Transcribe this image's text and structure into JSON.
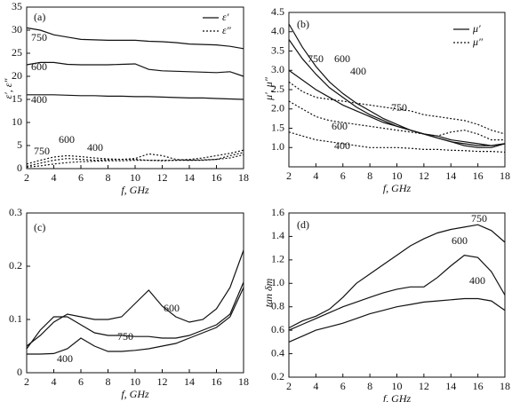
{
  "chart_data": [
    {
      "type": "line",
      "title": "(a)",
      "xlabel": "f, GHz",
      "ylabel": "ε′, ε″",
      "x": [
        2,
        3,
        4,
        5,
        6,
        7,
        8,
        9,
        10,
        11,
        12,
        13,
        14,
        15,
        16,
        17,
        18
      ],
      "xlim": [
        2,
        18
      ],
      "xticks": [
        2,
        4,
        6,
        8,
        10,
        12,
        14,
        16,
        18
      ],
      "ylim": [
        0,
        35
      ],
      "yticks": [
        0,
        5,
        10,
        15,
        20,
        25,
        30,
        35
      ],
      "legend": [
        {
          "label": "ε′",
          "dash": false
        },
        {
          "label": "ε″",
          "dash": true
        }
      ],
      "legend_corner": "upper right",
      "series": [
        {
          "name": "750",
          "color": "#111",
          "dash": false,
          "values": [
            30.5,
            30,
            29,
            28.5,
            28,
            27.9,
            27.8,
            27.8,
            27.8,
            27.6,
            27.5,
            27.3,
            27,
            26.9,
            26.8,
            26.5,
            26
          ]
        },
        {
          "name": "600",
          "color": "#111",
          "dash": false,
          "values": [
            22.5,
            23,
            23,
            22.6,
            22.5,
            22.5,
            22.5,
            22.6,
            22.7,
            21.5,
            21.2,
            21.1,
            21,
            20.9,
            20.8,
            21,
            20
          ]
        },
        {
          "name": "400",
          "color": "#111",
          "dash": false,
          "values": [
            16,
            16,
            16,
            15.9,
            15.8,
            15.8,
            15.7,
            15.7,
            15.6,
            15.6,
            15.5,
            15.4,
            15.3,
            15.3,
            15.2,
            15.1,
            15
          ]
        },
        {
          "name": "750",
          "color": "#111",
          "dash": true,
          "values": [
            1,
            1.8,
            2.5,
            2.8,
            2.6,
            2.3,
            2.1,
            2,
            2,
            1.8,
            1.7,
            1.8,
            2,
            2.3,
            2.8,
            3.3,
            4
          ]
        },
        {
          "name": "600",
          "color": "#111",
          "dash": true,
          "values": [
            0.5,
            1.2,
            1.8,
            2.2,
            2,
            1.8,
            1.9,
            2,
            2.2,
            3.2,
            2.8,
            2,
            1.8,
            1.8,
            2,
            2.8,
            3.5
          ]
        },
        {
          "name": "400",
          "color": "#111",
          "dash": true,
          "values": [
            0.3,
            0.6,
            1,
            1.3,
            1.5,
            1.6,
            1.7,
            1.7,
            1.8,
            1.8,
            1.8,
            1.8,
            1.8,
            1.9,
            2,
            2.3,
            3
          ]
        }
      ]
    },
    {
      "type": "line",
      "title": "(b)",
      "xlabel": "f, GHz",
      "ylabel": "μ′, μ″",
      "x": [
        2,
        3,
        4,
        5,
        6,
        7,
        8,
        9,
        10,
        11,
        12,
        13,
        14,
        15,
        16,
        17,
        18
      ],
      "xlim": [
        2,
        18
      ],
      "xticks": [
        2,
        4,
        6,
        8,
        10,
        12,
        14,
        16,
        18
      ],
      "ylim": [
        0.5,
        4.5
      ],
      "yticks": [
        {
          "value": 1,
          "label": "1.0"
        },
        1.5,
        {
          "value": 2,
          "label": "2.0"
        },
        2.5,
        {
          "value": 3,
          "label": "3.0"
        },
        3.5,
        {
          "value": 4,
          "label": "4.0"
        },
        4.5
      ],
      "legend": [
        {
          "label": "μ′",
          "dash": false
        },
        {
          "label": "μ″",
          "dash": true
        }
      ],
      "legend_corner": "upper right",
      "series": [
        {
          "name": "750",
          "color": "#111",
          "dash": false,
          "values": [
            4.2,
            3.6,
            3.1,
            2.7,
            2.4,
            2.15,
            1.95,
            1.75,
            1.6,
            1.45,
            1.35,
            1.25,
            1.15,
            1.05,
            1,
            1,
            1.1
          ]
        },
        {
          "name": "600",
          "color": "#111",
          "dash": false,
          "values": [
            3.8,
            3.3,
            2.9,
            2.55,
            2.3,
            2.05,
            1.85,
            1.7,
            1.55,
            1.45,
            1.35,
            1.25,
            1.15,
            1.1,
            1.05,
            1.05,
            1.1
          ]
        },
        {
          "name": "400",
          "color": "#111",
          "dash": false,
          "values": [
            3,
            2.75,
            2.5,
            2.3,
            2.1,
            1.95,
            1.8,
            1.65,
            1.55,
            1.45,
            1.35,
            1.3,
            1.2,
            1.15,
            1.1,
            1.05,
            1.1
          ]
        },
        {
          "name": "750",
          "color": "#111",
          "dash": true,
          "values": [
            2.7,
            2.45,
            2.3,
            2.25,
            2.2,
            2.15,
            2.1,
            2.05,
            2,
            1.95,
            1.85,
            1.8,
            1.75,
            1.7,
            1.6,
            1.45,
            1.35
          ]
        },
        {
          "name": "600",
          "color": "#111",
          "dash": true,
          "values": [
            2.2,
            2,
            1.8,
            1.7,
            1.65,
            1.6,
            1.55,
            1.5,
            1.45,
            1.4,
            1.35,
            1.3,
            1.4,
            1.45,
            1.35,
            1.2,
            1.2
          ]
        },
        {
          "name": "400",
          "color": "#111",
          "dash": true,
          "values": [
            1.4,
            1.3,
            1.2,
            1.15,
            1.1,
            1.05,
            1,
            1,
            1,
            0.98,
            0.95,
            0.95,
            0.93,
            0.92,
            0.9,
            0.9,
            0.88
          ]
        }
      ]
    },
    {
      "type": "line",
      "title": "(c)",
      "xlabel": "f, GHz",
      "x": [
        2,
        3,
        4,
        5,
        6,
        7,
        8,
        9,
        10,
        11,
        12,
        13,
        14,
        15,
        16,
        17,
        18
      ],
      "xlim": [
        2,
        18
      ],
      "xticks": [
        2,
        4,
        6,
        8,
        10,
        12,
        14,
        16,
        18
      ],
      "ylim": [
        0,
        0.3
      ],
      "yticks": [
        0,
        0.1,
        0.2,
        0.3
      ],
      "series": [
        {
          "name": "600",
          "color": "#111",
          "dash": false,
          "values": [
            0.05,
            0.07,
            0.095,
            0.11,
            0.105,
            0.1,
            0.1,
            0.105,
            0.13,
            0.155,
            0.125,
            0.105,
            0.095,
            0.1,
            0.12,
            0.16,
            0.23
          ]
        },
        {
          "name": "750",
          "color": "#111",
          "dash": false,
          "values": [
            0.045,
            0.08,
            0.105,
            0.105,
            0.09,
            0.075,
            0.07,
            0.07,
            0.068,
            0.068,
            0.065,
            0.065,
            0.07,
            0.08,
            0.09,
            0.11,
            0.17
          ]
        },
        {
          "name": "400",
          "color": "#111",
          "dash": false,
          "values": [
            0.035,
            0.035,
            0.036,
            0.045,
            0.065,
            0.05,
            0.04,
            0.04,
            0.042,
            0.045,
            0.05,
            0.055,
            0.065,
            0.075,
            0.085,
            0.105,
            0.16
          ]
        }
      ]
    },
    {
      "type": "line",
      "title": "(d)",
      "xlabel": "f, GHz",
      "ylabel": "tan δm",
      "x": [
        2,
        3,
        4,
        5,
        6,
        7,
        8,
        9,
        10,
        11,
        12,
        13,
        14,
        15,
        16,
        17,
        18
      ],
      "xlim": [
        2,
        18
      ],
      "xticks": [
        2,
        4,
        6,
        8,
        10,
        12,
        14,
        16,
        18
      ],
      "ylim": [
        0.2,
        1.6
      ],
      "yticks": [
        0.2,
        0.4,
        0.6,
        0.8,
        {
          "value": 1,
          "label": "1.0"
        },
        1.2,
        1.4,
        1.6
      ],
      "series": [
        {
          "name": "750",
          "color": "#111",
          "dash": false,
          "values": [
            0.62,
            0.68,
            0.72,
            0.78,
            0.88,
            1,
            1.08,
            1.16,
            1.24,
            1.32,
            1.38,
            1.43,
            1.46,
            1.48,
            1.5,
            1.45,
            1.35
          ]
        },
        {
          "name": "600",
          "color": "#111",
          "dash": false,
          "values": [
            0.6,
            0.65,
            0.7,
            0.75,
            0.8,
            0.84,
            0.88,
            0.92,
            0.95,
            0.97,
            0.97,
            1.05,
            1.15,
            1.24,
            1.22,
            1.1,
            0.9
          ]
        },
        {
          "name": "400",
          "color": "#111",
          "dash": false,
          "values": [
            0.5,
            0.55,
            0.6,
            0.63,
            0.66,
            0.7,
            0.74,
            0.77,
            0.8,
            0.82,
            0.84,
            0.85,
            0.86,
            0.87,
            0.87,
            0.85,
            0.77
          ]
        }
      ]
    }
  ]
}
